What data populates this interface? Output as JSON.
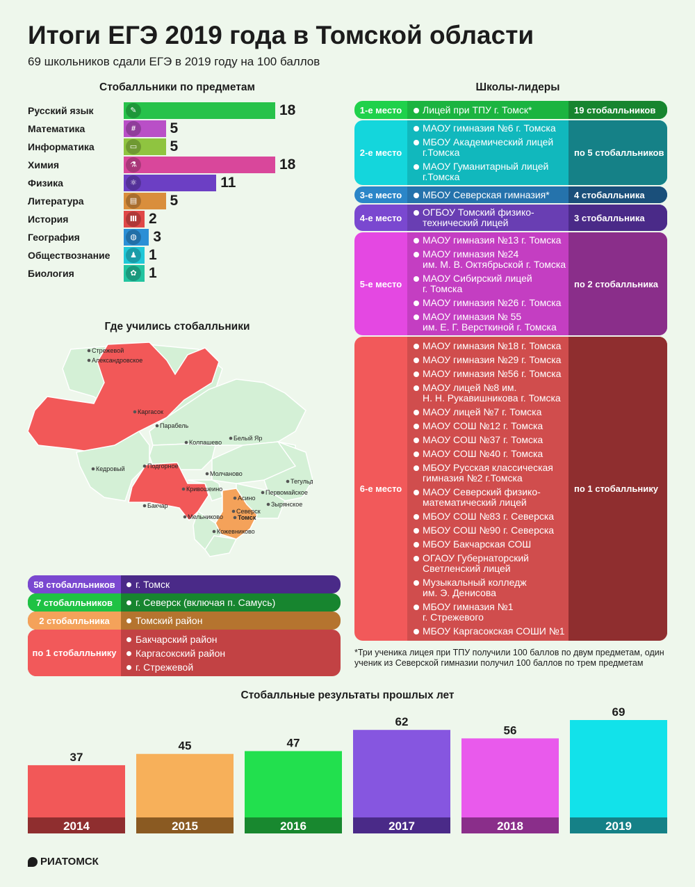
{
  "header": {
    "title": "Итоги ЕГЭ 2019 года в Томской области",
    "subtitle": "69 школьников сдали ЕГЭ в 2019 году на 100 баллов"
  },
  "subjects": {
    "title": "Стобалльники по предметам",
    "items": [
      {
        "name": "Русский язык",
        "value": 18,
        "color": "#27c24a",
        "icon": "pencil-icon"
      },
      {
        "name": "Математика",
        "value": 5,
        "color": "#b94fc7",
        "icon": "calculator-icon"
      },
      {
        "name": "Информатика",
        "value": 5,
        "color": "#8fc440",
        "icon": "computer-icon"
      },
      {
        "name": "Химия",
        "value": 18,
        "color": "#d9479b",
        "icon": "flask-icon"
      },
      {
        "name": "Физика",
        "value": 11,
        "color": "#6c3fc4",
        "icon": "atom-icon"
      },
      {
        "name": "Литература",
        "value": 5,
        "color": "#d98e3c",
        "icon": "book-icon"
      },
      {
        "name": "История",
        "value": 2,
        "color": "#e04848",
        "icon": "column-icon"
      },
      {
        "name": "География",
        "value": 3,
        "color": "#2b8fd6",
        "icon": "globe-icon"
      },
      {
        "name": "Обществознание",
        "value": 1,
        "color": "#20c8d8",
        "icon": "people-icon"
      },
      {
        "name": "Биология",
        "value": 1,
        "color": "#22c4a0",
        "icon": "cell-icon"
      }
    ]
  },
  "leaders": {
    "title": "Школы-лидеры",
    "rows": [
      {
        "place": "1-е место",
        "count": "19 стобалльников",
        "color": "#1fd14b",
        "dark": "#17852f",
        "schools": [
          [
            "Лицей при ТПУ г. Томск*"
          ]
        ]
      },
      {
        "place": "2-е место",
        "count": "по 5 стобалльников",
        "color": "#14d6dc",
        "dark": "#158187",
        "schools": [
          [
            "МАОУ гимназия №6 г. Томска"
          ],
          [
            "МБОУ Академический лицей",
            "г.Томска"
          ],
          [
            "МАОУ Гуманитарный лицей",
            "г.Томска"
          ]
        ]
      },
      {
        "place": "3-е место",
        "count": "4 стобалльника",
        "color": "#2b86c8",
        "dark": "#1a4f7a",
        "schools": [
          [
            "МБОУ Северская гимназия*"
          ]
        ]
      },
      {
        "place": "4-е место",
        "count": "3 стобалльника",
        "color": "#7a48d0",
        "dark": "#4a2a88",
        "schools": [
          [
            "ОГБОУ Томский физико-",
            "технический лицей"
          ]
        ]
      },
      {
        "place": "5-е место",
        "count": "по 2 стобалльника",
        "color": "#e448e2",
        "dark": "#8a2e8a",
        "schools": [
          [
            "МАОУ гимназия №13 г. Томска"
          ],
          [
            "МАОУ гимназия №24",
            "им. М. В. Октябрьской г. Томска"
          ],
          [
            "МАОУ Сибирский лицей",
            "г. Томска"
          ],
          [
            "МАОУ гимназия №26 г. Томска"
          ],
          [
            "МАОУ гимназия № 55",
            "им. Е. Г. Версткиной г. Томска"
          ]
        ]
      },
      {
        "place": "6-е место",
        "count": "по 1 стобалльнику",
        "color": "#f2595a",
        "dark": "#8f2e2f",
        "schools": [
          [
            "МАОУ гимназия №18 г. Томска"
          ],
          [
            "МАОУ гимназия №29 г. Томска"
          ],
          [
            "МАОУ гимназия №56 г. Томска"
          ],
          [
            "МАОУ лицей №8 им.",
            "Н. Н. Рукавишникова г. Томска"
          ],
          [
            "МАОУ лицей №7 г. Томска"
          ],
          [
            "МАОУ СОШ №12 г. Томска"
          ],
          [
            "МАОУ СОШ №37 г. Томска"
          ],
          [
            "МАОУ СОШ №40 г. Томска"
          ],
          [
            "МБОУ Русская классическая",
            "гимназия №2 г.Томска"
          ],
          [
            "МАОУ Северский физико-",
            "математический лицей"
          ],
          [
            "МБОУ СОШ №83 г. Северска"
          ],
          [
            "МБОУ СОШ №90 г. Северска"
          ],
          [
            "МБОУ Бакчарская СОШ"
          ],
          [
            "ОГАОУ Губернаторский",
            "Светленский лицей"
          ],
          [
            "Музыкальный колледж",
            "им. Э. Денисова"
          ],
          [
            "МБОУ гимназия №1",
            "г. Стрежевого"
          ],
          [
            "МБОУ Каргасокская СОШИ №1"
          ]
        ]
      }
    ],
    "footnote": "*Три ученика лицея при ТПУ получили 100 баллов по двум предметам, один ученик из Северской гимназии получил 100 баллов по трем предметам"
  },
  "map": {
    "title": "Где учились стобалльники",
    "labels": [
      "Стрежевой",
      "Александровское",
      "Каргасок",
      "Парабель",
      "Колпашево",
      "Белый Яр",
      "Кедровый",
      "Подгорное",
      "Молчаново",
      "Тегульдет",
      "Кривошеино",
      "Первомайское",
      "Бакчар",
      "Асино",
      "Зырянское",
      "Северск",
      "Томск",
      "Мельниково",
      "Кожевниково"
    ],
    "colors": {
      "base": "#d4f0d6",
      "highlight": "#f25858",
      "tomsk_district": "#f4a25a",
      "border": "#ffffff"
    }
  },
  "cities": [
    {
      "count": "58 стобалльников",
      "color": "#7a48d0",
      "dark": "#4a2a88",
      "items": [
        "г. Томск"
      ]
    },
    {
      "count": "7 стобалльников",
      "color": "#1fc244",
      "dark": "#17852f",
      "items": [
        "г. Северск (включая п. Самусь)"
      ]
    },
    {
      "count": "2 стобалльника",
      "color": "#f4a25a",
      "dark": "#b5742f",
      "items": [
        "Томский район"
      ]
    },
    {
      "count": "по 1 стобалльнику",
      "color": "#f2595a",
      "dark": "#c24244",
      "items": [
        "Бакчарский район",
        "Каргасокский район",
        "г. Стрежевой"
      ]
    }
  ],
  "chart_data": {
    "type": "bar",
    "title": "Стобалльные результаты прошлых лет",
    "categories": [
      "2014",
      "2015",
      "2016",
      "2017",
      "2018",
      "2019"
    ],
    "values": [
      37,
      45,
      47,
      62,
      56,
      69
    ],
    "colors": [
      "#f25858",
      "#f7b05a",
      "#22e04e",
      "#8656e0",
      "#e95aec",
      "#12e2ea"
    ],
    "dark_colors": [
      "#8f2e2f",
      "#8a5a22",
      "#18882f",
      "#4a2a88",
      "#8a2e8a",
      "#158187"
    ]
  },
  "logo": "РИАТОМСК"
}
